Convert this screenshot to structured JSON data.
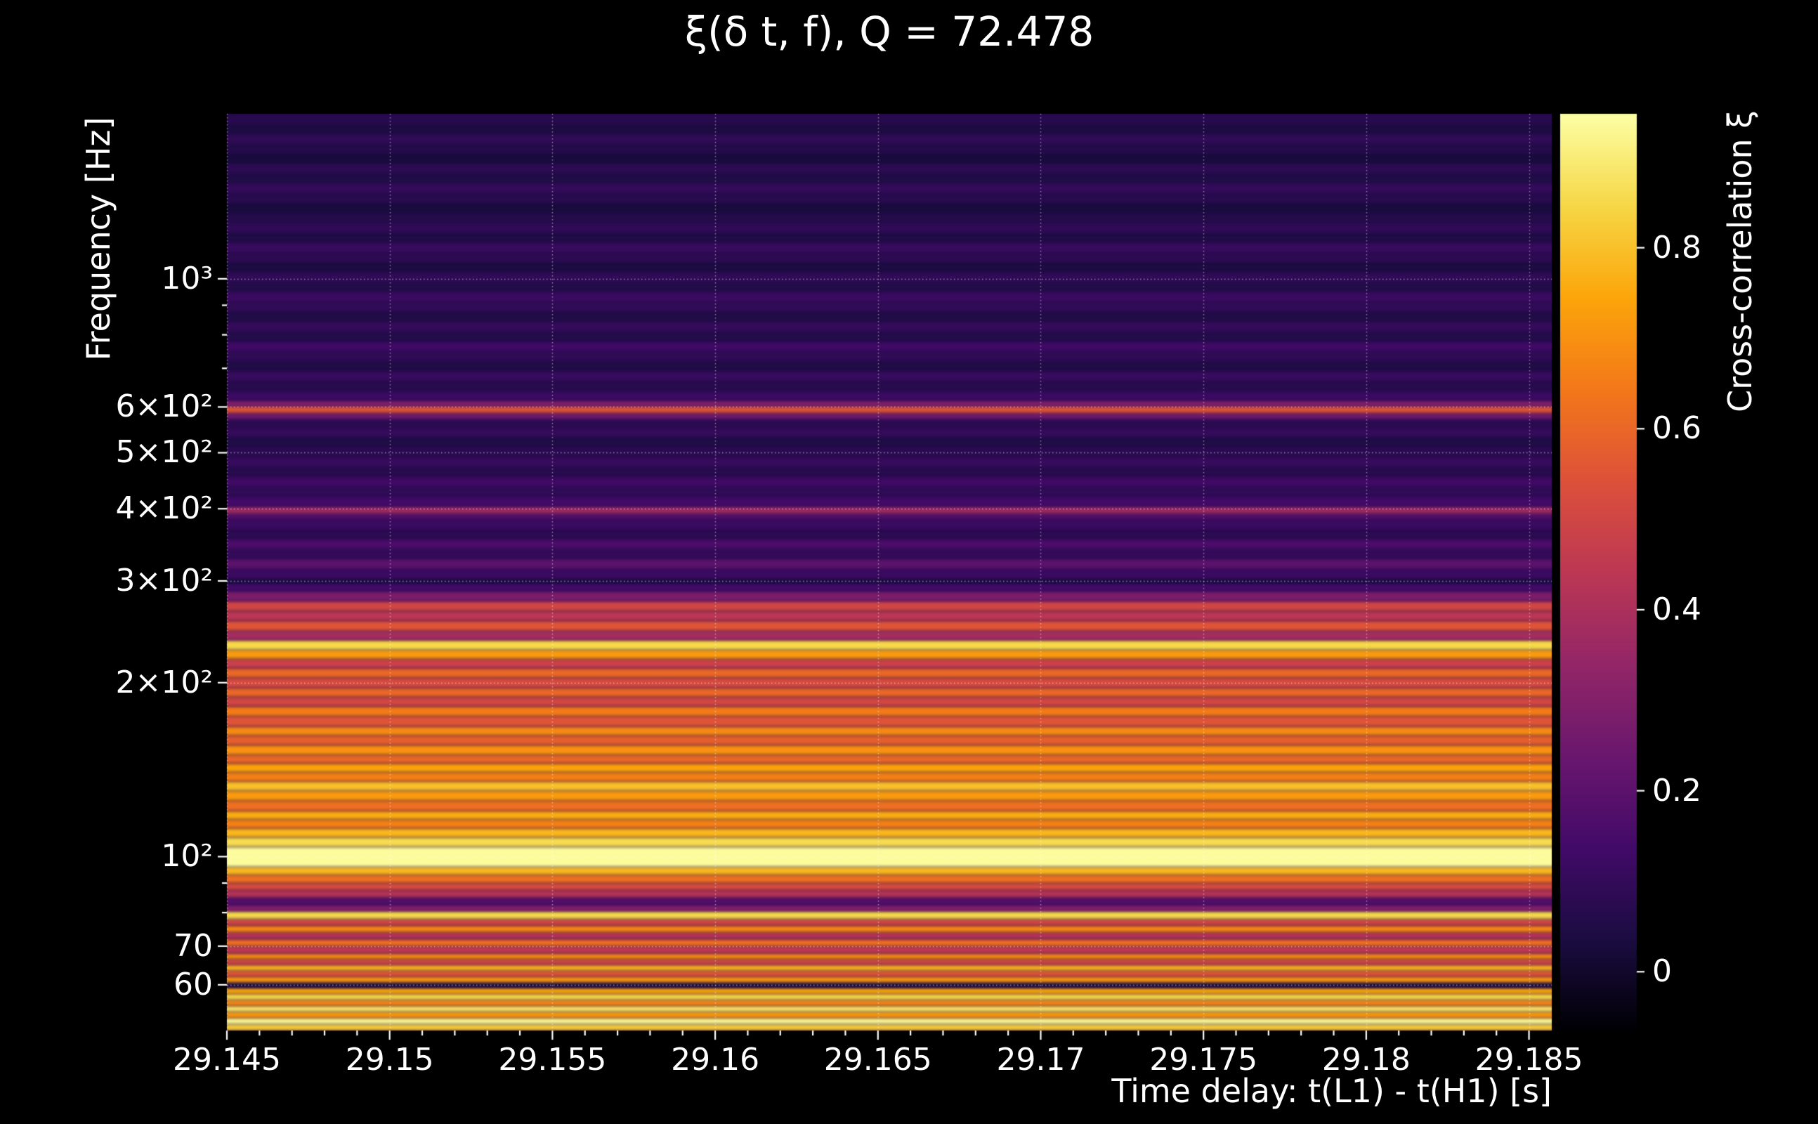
{
  "colors": {
    "background": "#000000",
    "text": "#ffffff",
    "grid": "#ffffff",
    "tick": "#ffffff"
  },
  "chart_data": {
    "type": "heatmap",
    "title": "ξ(δ t, f), Q = 72.478",
    "xlabel": "Time delay: t(L1) - t(H1) [s]",
    "ylabel": "Frequency [Hz]",
    "x_scale": "linear",
    "y_scale": "log",
    "x_range": [
      29.145,
      29.1857
    ],
    "y_range": [
      50,
      1930
    ],
    "x_minor_step": 0.001,
    "grid": {
      "visible": true,
      "style": "dotted"
    },
    "x_ticks": [
      {
        "value": 29.145,
        "label": "29.145"
      },
      {
        "value": 29.15,
        "label": "29.15"
      },
      {
        "value": 29.155,
        "label": "29.155"
      },
      {
        "value": 29.16,
        "label": "29.16"
      },
      {
        "value": 29.165,
        "label": "29.165"
      },
      {
        "value": 29.17,
        "label": "29.17"
      },
      {
        "value": 29.175,
        "label": "29.175"
      },
      {
        "value": 29.18,
        "label": "29.18"
      },
      {
        "value": 29.185,
        "label": "29.185"
      }
    ],
    "y_ticks": [
      {
        "value": 1000,
        "label": "10³"
      },
      {
        "value": 600,
        "label": "6×10²"
      },
      {
        "value": 500,
        "label": "5×10²"
      },
      {
        "value": 400,
        "label": "4×10²"
      },
      {
        "value": 300,
        "label": "3×10²"
      },
      {
        "value": 200,
        "label": "2×10²"
      },
      {
        "value": 100,
        "label": "10²"
      },
      {
        "value": 70,
        "label": "70"
      },
      {
        "value": 60,
        "label": "60"
      }
    ],
    "y_minor_ticks": [
      80,
      90,
      700,
      800,
      900
    ],
    "colorbar": {
      "label": "Cross-correlation ξ",
      "vmin": -0.065,
      "vmax": 0.948,
      "ticks": [
        {
          "value": 0,
          "label": "0"
        },
        {
          "value": 0.2,
          "label": "0.2"
        },
        {
          "value": 0.4,
          "label": "0.4"
        },
        {
          "value": 0.6,
          "label": "0.6"
        },
        {
          "value": 0.8,
          "label": "0.8"
        }
      ]
    },
    "colormap": {
      "name": "inferno",
      "stops": [
        "#000004",
        "#1b0c41",
        "#420a68",
        "#6a176e",
        "#932667",
        "#bc3754",
        "#dd513a",
        "#f37819",
        "#fca50a",
        "#f6d746",
        "#fcffa4"
      ]
    },
    "bands_note": "Each band is [freq_low_Hz, freq_high_Hz, cross_correlation_xi]; pattern is constant across time delay",
    "bands": [
      [
        50,
        51.3,
        0.82
      ],
      [
        51.3,
        52.6,
        0.93
      ],
      [
        52.6,
        53.9,
        0.72
      ],
      [
        53.9,
        55.2,
        0.88
      ],
      [
        55.2,
        56.5,
        0.68
      ],
      [
        56.5,
        57.9,
        0.85
      ],
      [
        57.9,
        59.3,
        0.75
      ],
      [
        59.3,
        60.6,
        0.04
      ],
      [
        60.6,
        62,
        0.72
      ],
      [
        62,
        63.5,
        0.55
      ],
      [
        63.5,
        65,
        0.78
      ],
      [
        65,
        66.5,
        0.5
      ],
      [
        66.5,
        68,
        0.7
      ],
      [
        68,
        70,
        0.45
      ],
      [
        70,
        72,
        0.62
      ],
      [
        72,
        74,
        0.42
      ],
      [
        74,
        76,
        0.68
      ],
      [
        76,
        78,
        0.5
      ],
      [
        78,
        80.5,
        0.85
      ],
      [
        80.5,
        82.5,
        0.3
      ],
      [
        82.5,
        85,
        0.18
      ],
      [
        85,
        87.5,
        0.42
      ],
      [
        87.5,
        90,
        0.52
      ],
      [
        90,
        93,
        0.62
      ],
      [
        93,
        96,
        0.78
      ],
      [
        96,
        104,
        0.94
      ],
      [
        104,
        108,
        0.86
      ],
      [
        108,
        112,
        0.78
      ],
      [
        112,
        116,
        0.66
      ],
      [
        116,
        120,
        0.76
      ],
      [
        120,
        125,
        0.62
      ],
      [
        125,
        130,
        0.72
      ],
      [
        130,
        135,
        0.8
      ],
      [
        135,
        140,
        0.66
      ],
      [
        140,
        145,
        0.74
      ],
      [
        145,
        150,
        0.6
      ],
      [
        150,
        156,
        0.7
      ],
      [
        156,
        162,
        0.58
      ],
      [
        162,
        168,
        0.68
      ],
      [
        168,
        175,
        0.55
      ],
      [
        175,
        182,
        0.65
      ],
      [
        182,
        189,
        0.5
      ],
      [
        189,
        196,
        0.6
      ],
      [
        196,
        204,
        0.52
      ],
      [
        204,
        212,
        0.6
      ],
      [
        212,
        220,
        0.48
      ],
      [
        220,
        228,
        0.72
      ],
      [
        228,
        237,
        0.85
      ],
      [
        237,
        246,
        0.38
      ],
      [
        246,
        256,
        0.55
      ],
      [
        256,
        266,
        0.44
      ],
      [
        266,
        277,
        0.5
      ],
      [
        277,
        288,
        0.28
      ],
      [
        288,
        297,
        0.14
      ],
      [
        297,
        303,
        0.04
      ],
      [
        303,
        315,
        0.12
      ],
      [
        315,
        328,
        0.2
      ],
      [
        328,
        341,
        0.1
      ],
      [
        341,
        355,
        0.16
      ],
      [
        355,
        369,
        0.08
      ],
      [
        369,
        384,
        0.12
      ],
      [
        384,
        392,
        0.18
      ],
      [
        392,
        404,
        0.36
      ],
      [
        404,
        420,
        0.14
      ],
      [
        420,
        437,
        0.09
      ],
      [
        437,
        455,
        0.13
      ],
      [
        455,
        473,
        0.07
      ],
      [
        473,
        492,
        0.11
      ],
      [
        492,
        512,
        0.08
      ],
      [
        512,
        533,
        0.05
      ],
      [
        533,
        554,
        0.1
      ],
      [
        554,
        572,
        0.08
      ],
      [
        572,
        586,
        0.25
      ],
      [
        586,
        602,
        0.55
      ],
      [
        602,
        616,
        0.3
      ],
      [
        616,
        640,
        0.12
      ],
      [
        640,
        666,
        0.07
      ],
      [
        666,
        693,
        0.11
      ],
      [
        693,
        721,
        0.05
      ],
      [
        721,
        750,
        0.09
      ],
      [
        750,
        780,
        0.13
      ],
      [
        780,
        811,
        0.06
      ],
      [
        811,
        844,
        0.1
      ],
      [
        844,
        878,
        0.05
      ],
      [
        878,
        913,
        0.09
      ],
      [
        913,
        950,
        0.12
      ],
      [
        950,
        988,
        0.06
      ],
      [
        988,
        1028,
        0.09
      ],
      [
        1028,
        1069,
        0.04
      ],
      [
        1069,
        1112,
        0.08
      ],
      [
        1112,
        1157,
        0.11
      ],
      [
        1157,
        1203,
        0.05
      ],
      [
        1203,
        1252,
        0.09
      ],
      [
        1252,
        1302,
        0.06
      ],
      [
        1302,
        1354,
        0.03
      ],
      [
        1354,
        1409,
        0.07
      ],
      [
        1409,
        1465,
        0.1
      ],
      [
        1465,
        1524,
        0.05
      ],
      [
        1524,
        1585,
        0.08
      ],
      [
        1585,
        1649,
        0.03
      ],
      [
        1649,
        1715,
        0.06
      ],
      [
        1715,
        1784,
        0.09
      ],
      [
        1784,
        1856,
        0.04
      ],
      [
        1856,
        1930,
        0.07
      ]
    ]
  }
}
